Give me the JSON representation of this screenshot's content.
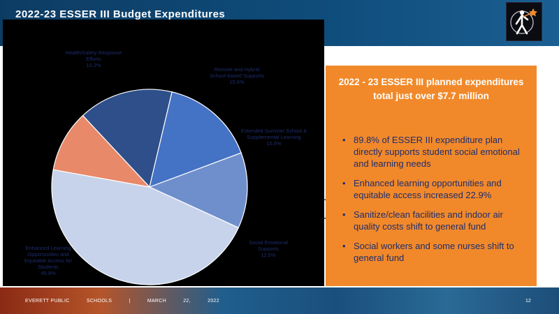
{
  "slide": {
    "title": "2022-23 ESSER III Budget Expenditures",
    "footer": {
      "org": "EVERETT PUBLIC",
      "dept": "SCHOOLS",
      "sep": "|",
      "date_month": "MARCH",
      "date_day": "22,",
      "date_year": "2022"
    },
    "page_number": "12"
  },
  "panel": {
    "heading": "2022 - 23 ESSER III planned expenditures total just over $7.7 million",
    "bullets": [
      "89.8% of ESSER III expenditure plan directly supports student social emotional and learning needs",
      "Enhanced learning opportunities and equitable access increased 22.9%",
      "Sanitize/clean facilities and indoor air quality costs shift to general fund",
      "Social workers and some nurses shift to general fund"
    ]
  },
  "chart_data": {
    "type": "pie",
    "title": "",
    "slices": [
      {
        "label": "Remote and Hybrid School-based Supports",
        "value": 15.6,
        "value_label": "15.6%",
        "color": "#2e4f8a"
      },
      {
        "label": "Extended Summer School & Supplemental Learning",
        "value": 15.6,
        "value_label": "15.6%",
        "color": "#4472c4"
      },
      {
        "label": "Social Emotional Supports",
        "value": 12.5,
        "value_label": "12.5%",
        "color": "#6f8fcc"
      },
      {
        "label": "Enhanced Learning Opportunities and Equitable Access for Students",
        "value": 45.9,
        "value_label": "45.9%",
        "color": "#c7d3ea"
      },
      {
        "label": "Health/Safety Response Efforts",
        "value": 10.2,
        "value_label": "10.2%",
        "color": "#e8896a"
      }
    ]
  }
}
